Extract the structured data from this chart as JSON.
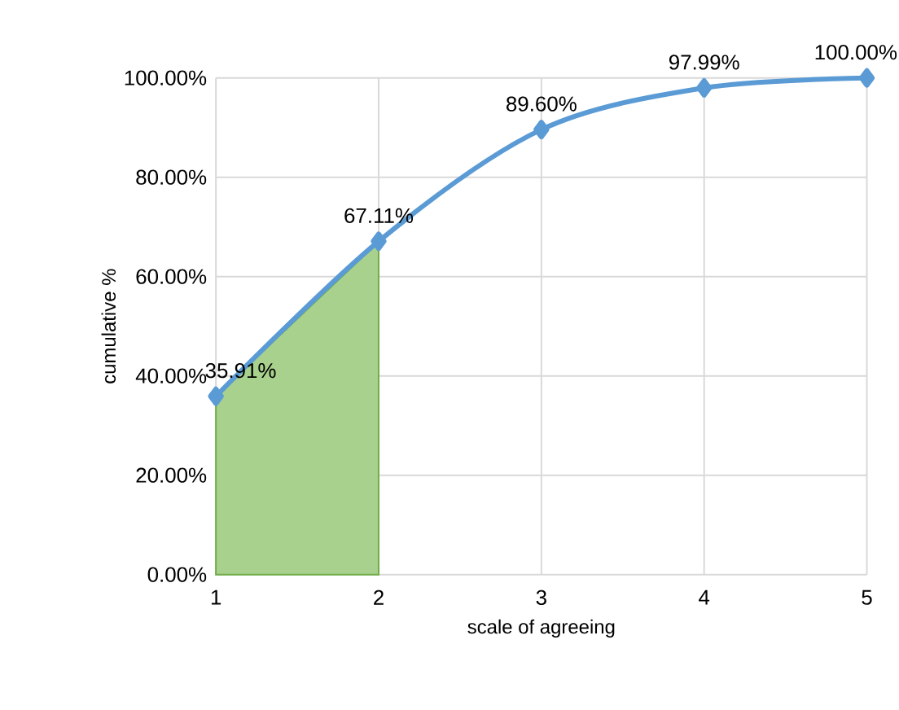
{
  "chart_data": {
    "type": "line",
    "xlabel": "scale of agreeing",
    "ylabel": "cumulative %",
    "x": [
      1,
      2,
      3,
      4,
      5
    ],
    "series": [
      {
        "type": "area",
        "color": "#a9d18e",
        "x": [
          1,
          2
        ],
        "values": [
          36,
          67
        ]
      },
      {
        "color": "#5b9bd5",
        "values": [
          35.91,
          67.11,
          89.6,
          97.99,
          100.0
        ],
        "value_labels": [
          "35.91%",
          "67.11%",
          "89.60%",
          "97.99%",
          "100.00%"
        ],
        "marker": "diamond"
      }
    ],
    "xlim": [
      1,
      5
    ],
    "xticks": [
      1,
      2,
      3,
      4,
      5
    ],
    "ylim": [
      0,
      100
    ],
    "yticks": [
      {
        "value": 0,
        "label": "0.00%"
      },
      {
        "value": 20,
        "label": "20.00%"
      },
      {
        "value": 40,
        "label": "40.00%"
      },
      {
        "value": 60,
        "label": "60.00%"
      },
      {
        "value": 80,
        "label": "80.00%"
      },
      {
        "value": 100,
        "label": "100.00%"
      }
    ],
    "grid": true
  }
}
